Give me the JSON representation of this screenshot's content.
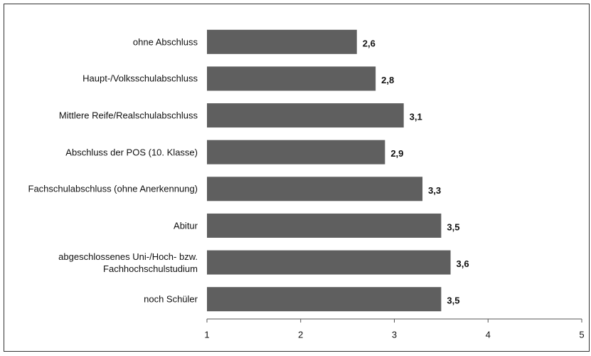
{
  "chart_data": {
    "type": "bar",
    "orientation": "horizontal",
    "categories": [
      "ohne Abschluss",
      "Haupt-/Volksschulabschluss",
      "Mittlere Reife/Realschulabschluss",
      "Abschluss der POS (10. Klasse)",
      "Fachschulabschluss (ohne Anerkennung)",
      "Abitur",
      "abgeschlossenes Uni-/Hoch- bzw.\nFachhochschulstudium",
      "noch Schüler"
    ],
    "values": [
      2.6,
      2.8,
      3.1,
      2.9,
      3.3,
      3.5,
      3.6,
      3.5
    ],
    "value_labels": [
      "2,6",
      "2,8",
      "3,1",
      "2,9",
      "3,3",
      "3,5",
      "3,6",
      "3,5"
    ],
    "color": "#5f5f5f",
    "xlim": [
      1,
      5
    ],
    "xticks": [
      1,
      2,
      3,
      4,
      5
    ]
  }
}
